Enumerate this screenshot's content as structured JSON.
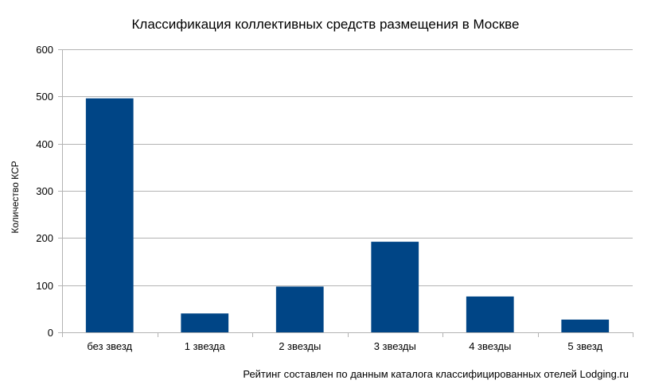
{
  "chart_data": {
    "type": "bar",
    "title": "Классификация коллективных средств размещения в Москве",
    "xlabel": "",
    "ylabel": "Количество КСР",
    "categories": [
      "без звезд",
      "1 звезда",
      "2 звезды",
      "3 звезды",
      "4 звезды",
      "5 звезд"
    ],
    "values": [
      496,
      40,
      97,
      192,
      76,
      27
    ],
    "ylim": [
      0,
      600
    ],
    "yticks": [
      0,
      100,
      200,
      300,
      400,
      500,
      600
    ],
    "grid": true,
    "legend": "none",
    "bar_color": "#004586",
    "grid_color": "#b3b3b3",
    "footnote": "Рейтинг составлен по данным каталога классифицированных отелей Lodging.ru"
  }
}
